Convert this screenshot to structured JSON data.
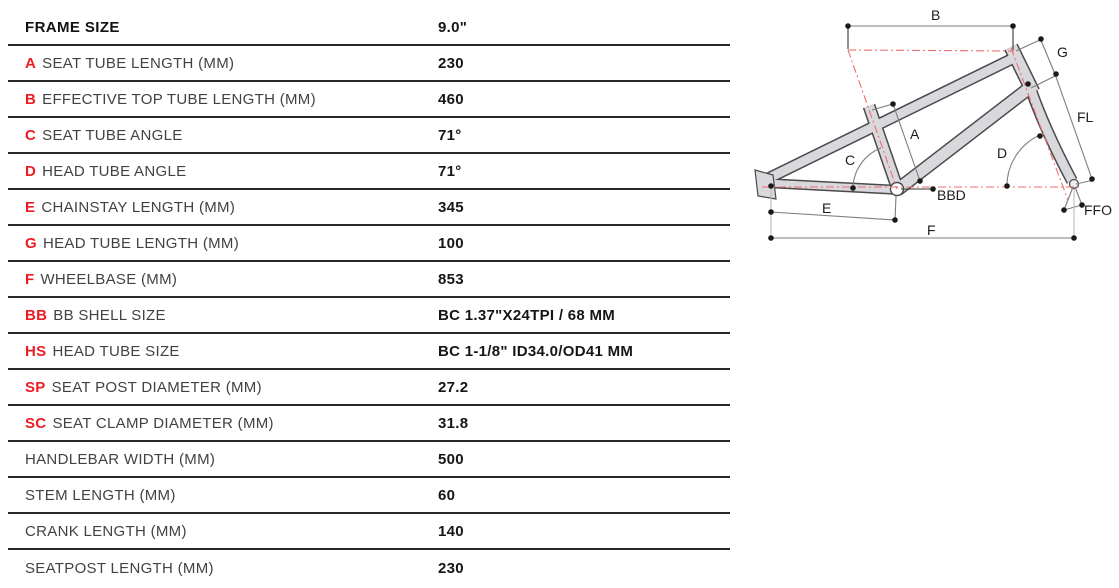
{
  "table": {
    "header": {
      "label": "FRAME SIZE",
      "value": "9.0\""
    },
    "rows": [
      {
        "prefix": "A",
        "label": "SEAT TUBE LENGTH (MM)",
        "value": "230"
      },
      {
        "prefix": "B",
        "label": "EFFECTIVE TOP TUBE LENGTH (MM)",
        "value": "460"
      },
      {
        "prefix": "C",
        "label": "SEAT TUBE ANGLE",
        "value": "71°"
      },
      {
        "prefix": "D",
        "label": "HEAD TUBE ANGLE",
        "value": "71°"
      },
      {
        "prefix": "E",
        "label": "CHAINSTAY LENGTH (MM)",
        "value": "345"
      },
      {
        "prefix": "G",
        "label": "HEAD TUBE LENGTH (MM)",
        "value": "100"
      },
      {
        "prefix": "F",
        "label": "WHEELBASE (MM)",
        "value": "853"
      },
      {
        "prefix": "BB",
        "label": "BB SHELL SIZE",
        "value": "BC 1.37\"X24TPI / 68 MM"
      },
      {
        "prefix": "HS",
        "label": "HEAD TUBE SIZE",
        "value": "BC 1-1/8\" ID34.0/OD41 MM"
      },
      {
        "prefix": "SP",
        "label": "SEAT POST DIAMETER (MM)",
        "value": "27.2"
      },
      {
        "prefix": "SC",
        "label": "SEAT CLAMP DIAMETER (MM)",
        "value": "31.8"
      },
      {
        "prefix": "",
        "label": "HANDLEBAR WIDTH (MM)",
        "value": "500"
      },
      {
        "prefix": "",
        "label": "STEM LENGTH (MM)",
        "value": "60"
      },
      {
        "prefix": "",
        "label": "CRANK LENGTH (MM)",
        "value": "140"
      },
      {
        "prefix": "",
        "label": "SEATPOST LENGTH (MM)",
        "value": "230"
      }
    ]
  },
  "diagram": {
    "labels": {
      "b": "B",
      "g": "G",
      "fl": "FL",
      "a": "A",
      "c": "C",
      "d": "D",
      "bbd": "BBD",
      "e": "E",
      "f": "F",
      "ffo": "FFO"
    },
    "colors": {
      "accent_red": "#ed1c24",
      "construction_red": "#ee6e6e",
      "frame_fill": "#d9d9dd",
      "frame_outline": "#4a4a4a",
      "dimension_gray": "#7d7d7d",
      "rule_black": "#282828"
    }
  }
}
